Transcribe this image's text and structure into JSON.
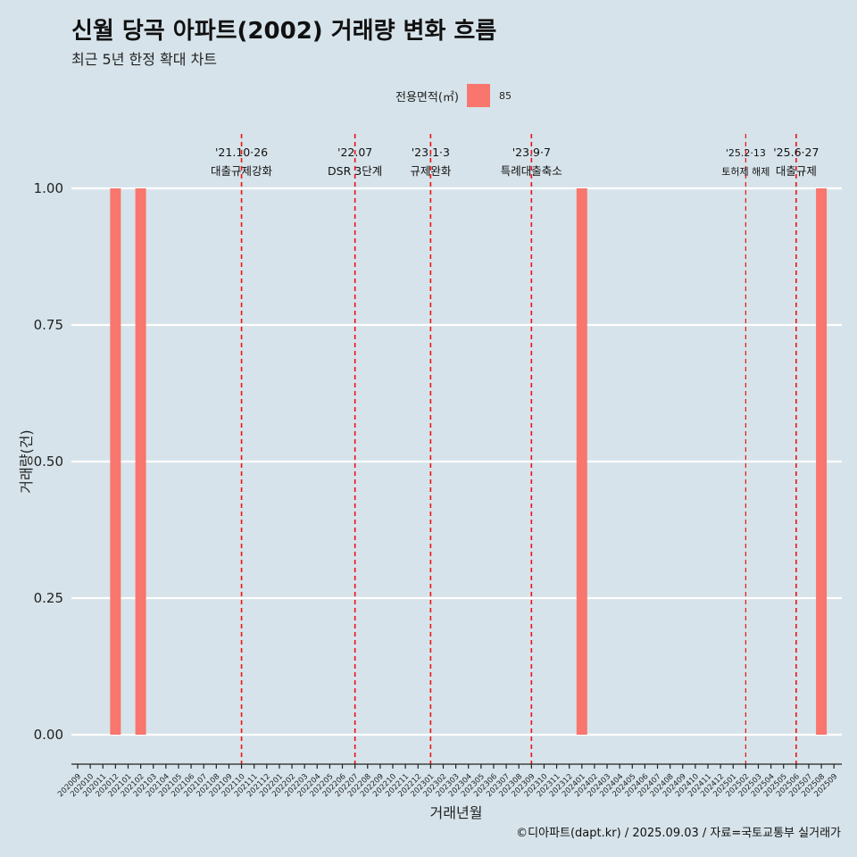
{
  "header": {
    "title": "신월 당곡 아파트(2002) 거래량 변화 흐름",
    "subtitle": "최근 5년 한정 확대 차트"
  },
  "legend": {
    "title": "전용면적(㎡)",
    "label": "85",
    "color": "#f8766d"
  },
  "caption": "©디아파트(dapt.kr) / 2025.09.03 / 자료=국토교통부 실거래가",
  "chart_data": {
    "type": "bar",
    "title": "신월 당곡 아파트(2002) 거래량 변화 흐름",
    "xlabel": "거래년월",
    "ylabel": "거래량(건)",
    "ylim": [
      0,
      1
    ],
    "yticks": [
      0,
      0.25,
      0.5,
      0.75,
      1
    ],
    "ytick_labels": [
      "0.00",
      "0.25",
      "0.50",
      "0.75",
      "1.00"
    ],
    "grid": "horizontal",
    "legend_position": "top",
    "bar_color": "#f8766d",
    "categories": [
      "202009",
      "202010",
      "202011",
      "202012",
      "202101",
      "202102",
      "202103",
      "202104",
      "202105",
      "202106",
      "202107",
      "202108",
      "202109",
      "202110",
      "202111",
      "202112",
      "202201",
      "202202",
      "202203",
      "202204",
      "202205",
      "202206",
      "202207",
      "202208",
      "202209",
      "202210",
      "202211",
      "202212",
      "202301",
      "202302",
      "202303",
      "202304",
      "202305",
      "202306",
      "202307",
      "202308",
      "202309",
      "202310",
      "202311",
      "202312",
      "202401",
      "202402",
      "202403",
      "202404",
      "202405",
      "202406",
      "202407",
      "202408",
      "202409",
      "202410",
      "202411",
      "202412",
      "202501",
      "202502",
      "202503",
      "202504",
      "202505",
      "202506",
      "202507",
      "202508",
      "202509"
    ],
    "series": [
      {
        "name": "85",
        "points": [
          {
            "x": "202012",
            "y": 1
          },
          {
            "x": "202102",
            "y": 1
          },
          {
            "x": "202401",
            "y": 1
          },
          {
            "x": "202508",
            "y": 1
          }
        ]
      }
    ],
    "annotations": [
      {
        "x": "202110",
        "date": "'21.10·26",
        "label": "대출규제강화"
      },
      {
        "x": "202207",
        "date": "'22.07",
        "label": "DSR 3단계"
      },
      {
        "x": "202301",
        "date": "'23.1·3",
        "label": "규제완화"
      },
      {
        "x": "202309",
        "date": "'23.9·7",
        "label": "특례대출축소"
      },
      {
        "x": "202502",
        "date": "'25.2·13",
        "label": "토허제 해제"
      },
      {
        "x": "202506",
        "date": "'25.6·27",
        "label": "대출규제"
      }
    ]
  }
}
